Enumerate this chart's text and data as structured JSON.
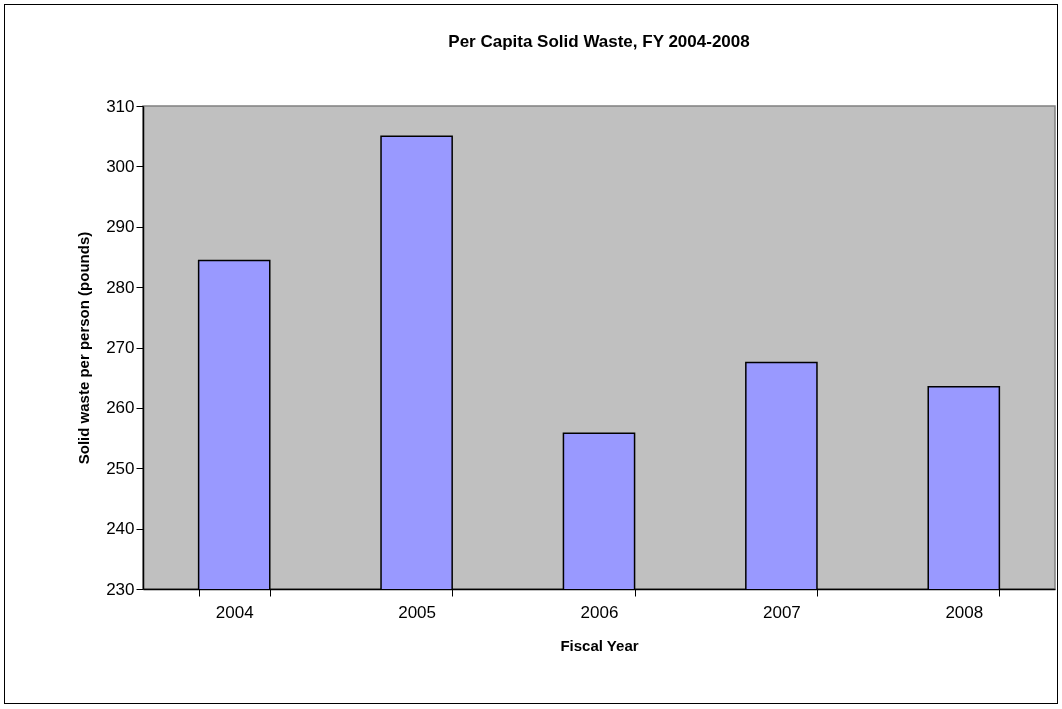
{
  "chart_data": {
    "type": "bar",
    "title": "Per Capita Solid Waste, FY 2004-2008",
    "xlabel": "Fiscal Year",
    "ylabel": "Solid waste per person (pounds)",
    "categories": [
      "2004",
      "2005",
      "2006",
      "2007",
      "2008"
    ],
    "values": [
      284.4,
      305,
      255.8,
      267.5,
      263.5
    ],
    "color": "#9999ff",
    "ylim": [
      230,
      310
    ],
    "yticks": [
      230,
      240,
      250,
      260,
      270,
      280,
      290,
      300,
      310
    ],
    "grid": false
  }
}
